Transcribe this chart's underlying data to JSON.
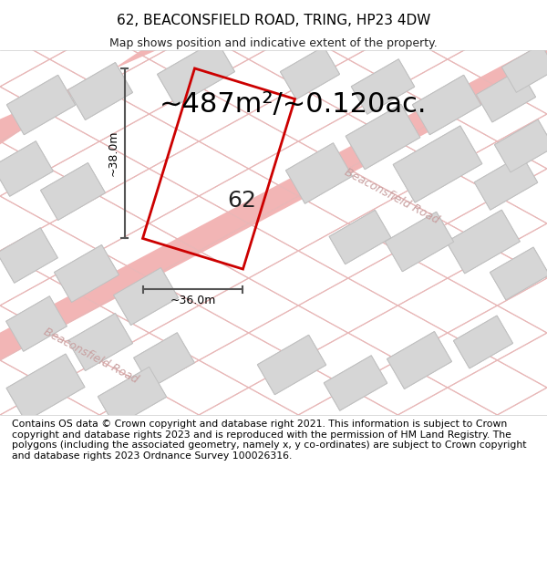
{
  "title_line1": "62, BEACONSFIELD ROAD, TRING, HP23 4DW",
  "title_line2": "Map shows position and indicative extent of the property.",
  "area_text": "~487m²/~0.120ac.",
  "label_38m": "~38.0m",
  "label_36m": "~36.0m",
  "label_62": "62",
  "road_label_upper": "Beaconsfield Road",
  "road_label_lower": "Beaconsfield Road",
  "footer": "Contains OS data © Crown copyright and database right 2021. This information is subject to Crown copyright and database rights 2023 and is reproduced with the permission of HM Land Registry. The polygons (including the associated geometry, namely x, y co-ordinates) are subject to Crown copyright and database rights 2023 Ordnance Survey 100026316.",
  "title_bg": "#ffffff",
  "map_bg": "#f5f5f5",
  "road_color": "#f2b5b5",
  "building_fill": "#d6d6d6",
  "building_edge": "#c0c0c0",
  "plot_edge": "#cc0000",
  "dim_line_color": "#555555",
  "footer_bg": "#ffffff",
  "road_line_color": "#e8b8b8",
  "title_fontsize": 11,
  "subtitle_fontsize": 9,
  "area_fontsize": 22,
  "label_fontsize": 9,
  "road_label_fontsize": 9,
  "num_62_fontsize": 18,
  "footer_fontsize": 7.8
}
